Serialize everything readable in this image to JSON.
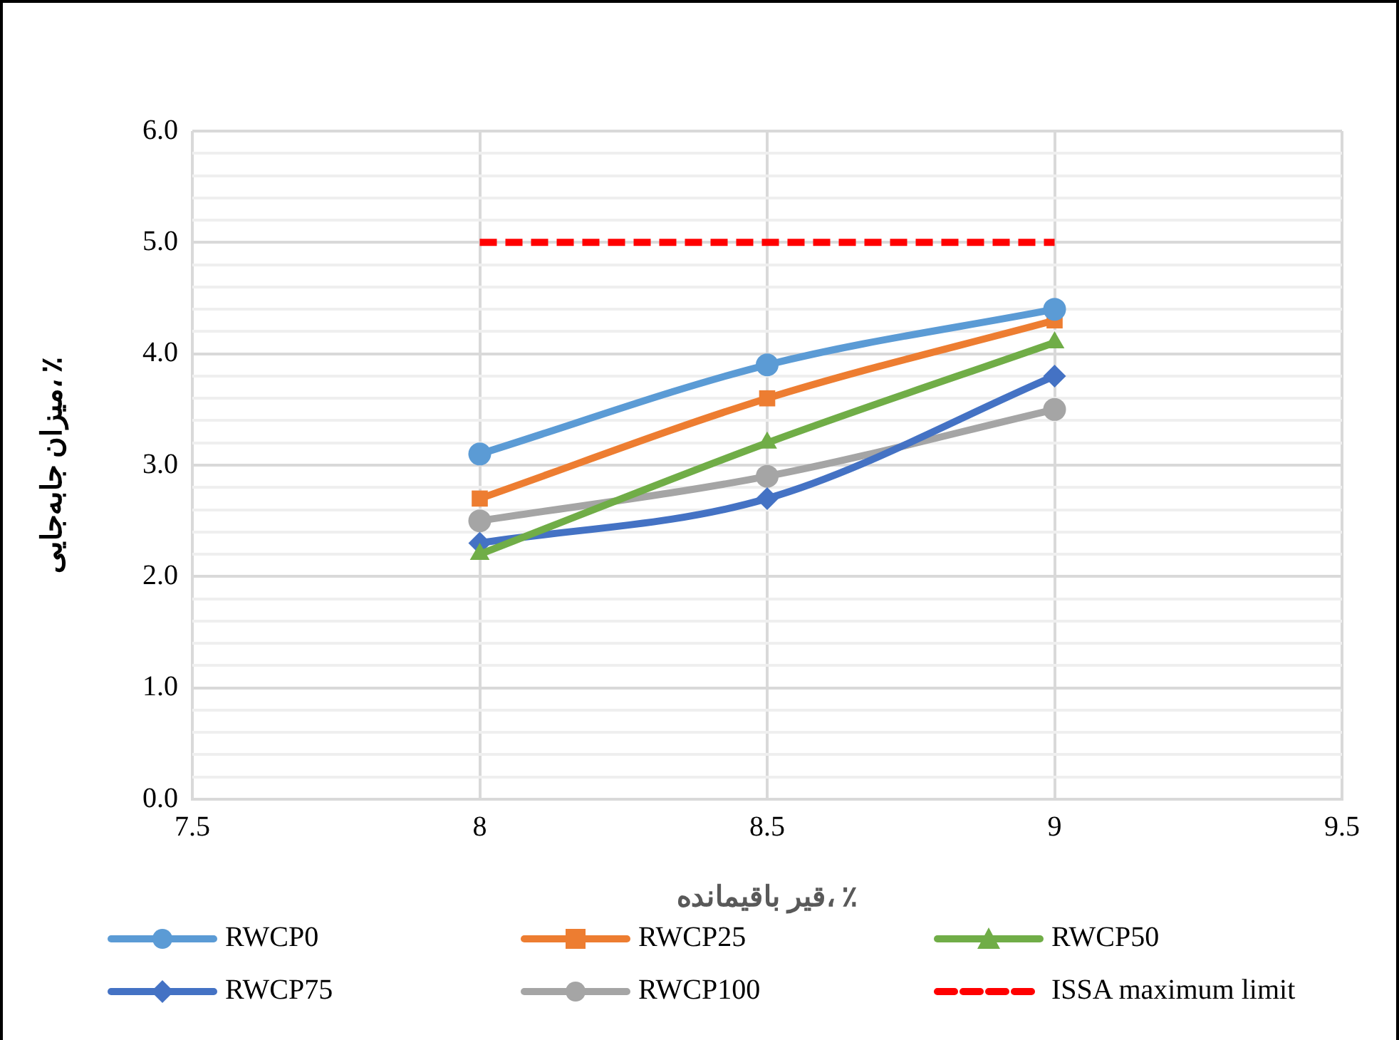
{
  "chart_data": {
    "type": "line",
    "xlabel": "قیر باقیمانده، ٪",
    "ylabel": "میزان جابه‌جایی، ٪",
    "x": [
      8,
      8.5,
      9
    ],
    "xlim": [
      7.5,
      9.5
    ],
    "xticks": [
      7.5,
      8,
      8.5,
      9,
      9.5
    ],
    "ylim": [
      0,
      6
    ],
    "yticks": [
      {
        "value": 0,
        "label": "0.0"
      },
      {
        "value": 0.2,
        "label": null
      },
      {
        "value": 0.4,
        "label": null
      },
      {
        "value": 0.6,
        "label": null
      },
      {
        "value": 0.8,
        "label": null
      },
      {
        "value": 1,
        "label": "1.0"
      },
      {
        "value": 1.2,
        "label": null
      },
      {
        "value": 1.4,
        "label": null
      },
      {
        "value": 1.6,
        "label": null
      },
      {
        "value": 1.8,
        "label": null
      },
      {
        "value": 2,
        "label": "2.0"
      },
      {
        "value": 2.2,
        "label": null
      },
      {
        "value": 2.4,
        "label": null
      },
      {
        "value": 2.6,
        "label": null
      },
      {
        "value": 2.8,
        "label": null
      },
      {
        "value": 3,
        "label": "3.0"
      },
      {
        "value": 3.2,
        "label": null
      },
      {
        "value": 3.4,
        "label": null
      },
      {
        "value": 3.6,
        "label": null
      },
      {
        "value": 3.8,
        "label": null
      },
      {
        "value": 4,
        "label": "4.0"
      },
      {
        "value": 4.2,
        "label": null
      },
      {
        "value": 4.4,
        "label": null
      },
      {
        "value": 4.6,
        "label": null
      },
      {
        "value": 4.8,
        "label": null
      },
      {
        "value": 5,
        "label": "5.0"
      },
      {
        "value": 5.2,
        "label": null
      },
      {
        "value": 5.4,
        "label": null
      },
      {
        "value": 5.6,
        "label": null
      },
      {
        "value": 5.8,
        "label": null
      },
      {
        "value": 6,
        "label": "6.0"
      }
    ],
    "grid": true,
    "legend": "bottom",
    "series": [
      {
        "name": "RWCP0",
        "color": "#5b9bd5",
        "marker": "circle",
        "values": [
          3.1,
          3.9,
          4.4
        ]
      },
      {
        "name": "RWCP25",
        "color": "#ed7d31",
        "marker": "square",
        "values": [
          2.7,
          3.6,
          4.3
        ]
      },
      {
        "name": "RWCP50",
        "color": "#70ad47",
        "marker": "triangle",
        "values": [
          2.2,
          3.2,
          4.1
        ]
      },
      {
        "name": "RWCP75",
        "color": "#4472c4",
        "marker": "diamond",
        "values": [
          2.3,
          2.7,
          3.8
        ]
      },
      {
        "name": "RWCP100",
        "color": "#a5a5a5",
        "marker": "circle",
        "values": [
          2.5,
          2.9,
          3.5
        ]
      },
      {
        "name": "ISSA maximum limit",
        "color": "#ff0000",
        "marker": "none",
        "line_style": "dashed",
        "values": [
          5,
          5,
          5
        ]
      }
    ]
  }
}
